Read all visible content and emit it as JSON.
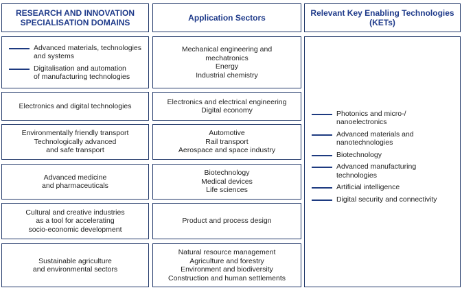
{
  "headers": {
    "domains": [
      "RESEARCH AND INNOVATION",
      "SPECIALISATION DOMAINS"
    ],
    "sectors": "Application Sectors",
    "kets": [
      "Relevant Key Enabling Technologies",
      "(KETs)"
    ]
  },
  "rows": [
    {
      "domain_bullets": [
        [
          "Advanced materials, technologies",
          "and systems"
        ],
        [
          "Digitalisation and automation",
          "of manufacturing technologies"
        ]
      ],
      "sectors": [
        "Mechanical engineering and",
        "mechatronics",
        "Energy",
        "Industrial chemistry"
      ]
    },
    {
      "domain": [
        "Electronics and digital technologies"
      ],
      "sectors": [
        "Electronics and electrical engineering",
        "Digital economy"
      ]
    },
    {
      "domain": [
        "Environmentally friendly transport",
        "Technologically advanced",
        "and safe transport"
      ],
      "sectors": [
        "Automotive",
        "Rail transport",
        "Aerospace and space industry"
      ]
    },
    {
      "domain": [
        "Advanced medicine",
        "and pharmaceuticals"
      ],
      "sectors": [
        "Biotechnology",
        "Medical devices",
        "Life sciences"
      ]
    },
    {
      "domain": [
        "Cultural and creative industries",
        "as a tool for accelerating",
        "socio-economic development"
      ],
      "sectors": [
        "Product and process design"
      ]
    },
    {
      "domain": [
        "Sustainable agriculture",
        "and environmental sectors"
      ],
      "sectors": [
        "Natural resource management",
        "Agriculture and forestry",
        "Environment and biodiversity",
        "Construction and human settlements"
      ]
    }
  ],
  "kets": [
    [
      "Photonics and micro-/",
      "nanoelectronics"
    ],
    [
      "Advanced materials and",
      "nanotechnologies"
    ],
    [
      "Biotechnology"
    ],
    [
      "Advanced manufacturing",
      "technologies"
    ],
    [
      "Artificial intelligence"
    ],
    [
      "Digital security and connectivity"
    ]
  ],
  "colors": {
    "border": "#1d3466",
    "header_text": "#1e3a8a",
    "bullet_line": "#1d3a80"
  }
}
